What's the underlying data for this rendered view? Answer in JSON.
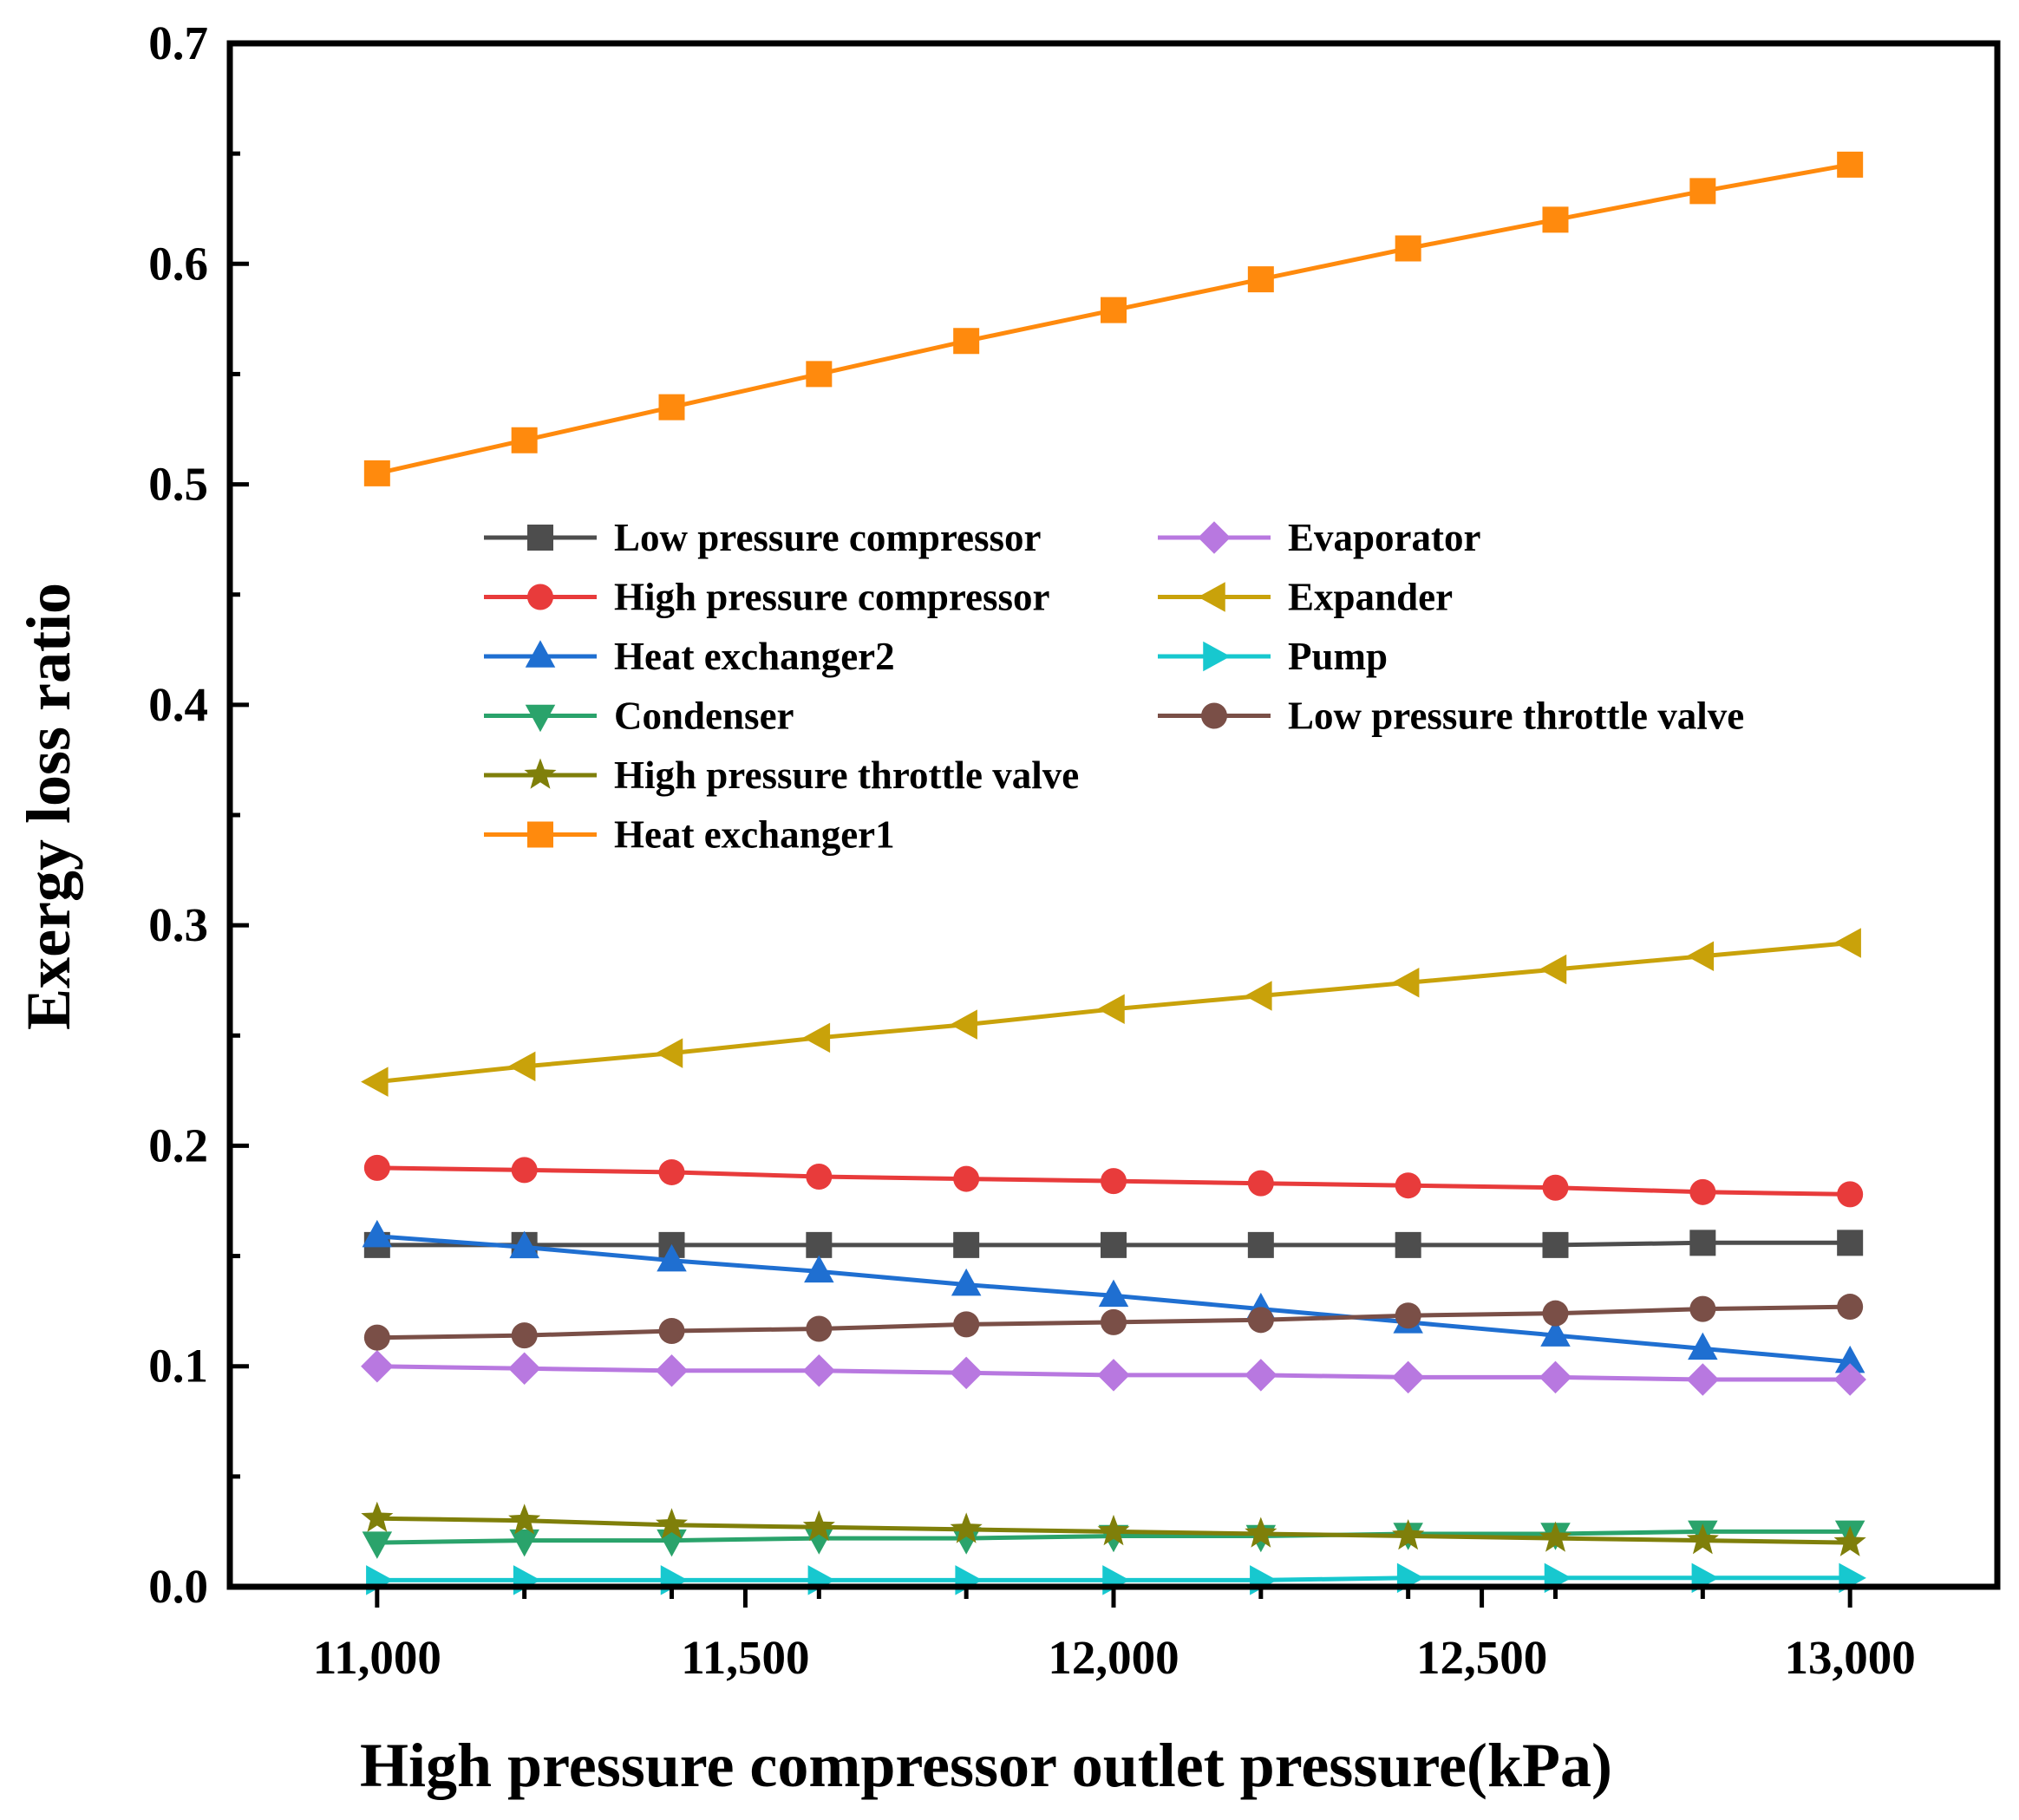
{
  "chart_data": {
    "type": "line",
    "xlabel": "High pressure compressor outlet pressure(kPa)",
    "ylabel": "Exergy loss ratio",
    "xlim": [
      10800,
      13200
    ],
    "ylim": [
      0,
      0.7
    ],
    "x": [
      11000,
      11200,
      11400,
      11600,
      11800,
      12000,
      12200,
      12400,
      12600,
      12800,
      13000
    ],
    "xticks": [
      11000,
      11500,
      12000,
      12500,
      13000
    ],
    "xtick_labels": [
      "11,000",
      "11,500",
      "12,000",
      "12,500",
      "13,000"
    ],
    "yticks": [
      0,
      0.1,
      0.2,
      0.3,
      0.4,
      0.5,
      0.6,
      0.7
    ],
    "ytick_labels": [
      "0.0",
      "0.1",
      "0.2",
      "0.3",
      "0.4",
      "0.5",
      "0.6",
      "0.7"
    ],
    "legend_position": "upper-left, two columns",
    "series": [
      {
        "name": "Low pressure compressor",
        "marker": "square",
        "color": "#4d4d4d",
        "values": [
          0.155,
          0.155,
          0.155,
          0.155,
          0.155,
          0.155,
          0.155,
          0.155,
          0.155,
          0.156,
          0.156
        ]
      },
      {
        "name": "High pressure compressor",
        "marker": "circle",
        "color": "#e83b3b",
        "values": [
          0.19,
          0.189,
          0.188,
          0.186,
          0.185,
          0.184,
          0.183,
          0.182,
          0.181,
          0.179,
          0.178
        ]
      },
      {
        "name": "Heat exchanger2",
        "marker": "triangle-up",
        "color": "#1f6fd1",
        "values": [
          0.159,
          0.154,
          0.148,
          0.143,
          0.137,
          0.132,
          0.126,
          0.12,
          0.114,
          0.108,
          0.102
        ]
      },
      {
        "name": "Condenser",
        "marker": "triangle-down",
        "color": "#2aa36b",
        "values": [
          0.02,
          0.021,
          0.021,
          0.022,
          0.022,
          0.023,
          0.023,
          0.024,
          0.024,
          0.025,
          0.025
        ]
      },
      {
        "name": "High pressure throttle valve",
        "marker": "star",
        "color": "#7f7f0a",
        "values": [
          0.031,
          0.03,
          0.028,
          0.027,
          0.026,
          0.025,
          0.024,
          0.023,
          0.022,
          0.021,
          0.02
        ]
      },
      {
        "name": "Heat exchanger1",
        "marker": "square",
        "color": "#ff8a0d",
        "values": [
          0.505,
          0.52,
          0.535,
          0.55,
          0.565,
          0.579,
          0.593,
          0.607,
          0.62,
          0.633,
          0.645
        ]
      },
      {
        "name": "Evaporator",
        "marker": "diamond",
        "color": "#b878e0",
        "values": [
          0.1,
          0.099,
          0.098,
          0.098,
          0.097,
          0.096,
          0.096,
          0.095,
          0.095,
          0.094,
          0.094
        ]
      },
      {
        "name": "Expander",
        "marker": "triangle-left",
        "color": "#c9a20a",
        "values": [
          0.229,
          0.236,
          0.242,
          0.249,
          0.255,
          0.262,
          0.268,
          0.274,
          0.28,
          0.286,
          0.292
        ]
      },
      {
        "name": "Pump",
        "marker": "triangle-right",
        "color": "#17c8cf",
        "values": [
          0.003,
          0.003,
          0.003,
          0.003,
          0.003,
          0.003,
          0.003,
          0.004,
          0.004,
          0.004,
          0.004
        ]
      },
      {
        "name": "Low pressure throttle valve",
        "marker": "circle",
        "color": "#7a4f47",
        "values": [
          0.113,
          0.114,
          0.116,
          0.117,
          0.119,
          0.12,
          0.121,
          0.123,
          0.124,
          0.126,
          0.127
        ]
      }
    ]
  }
}
